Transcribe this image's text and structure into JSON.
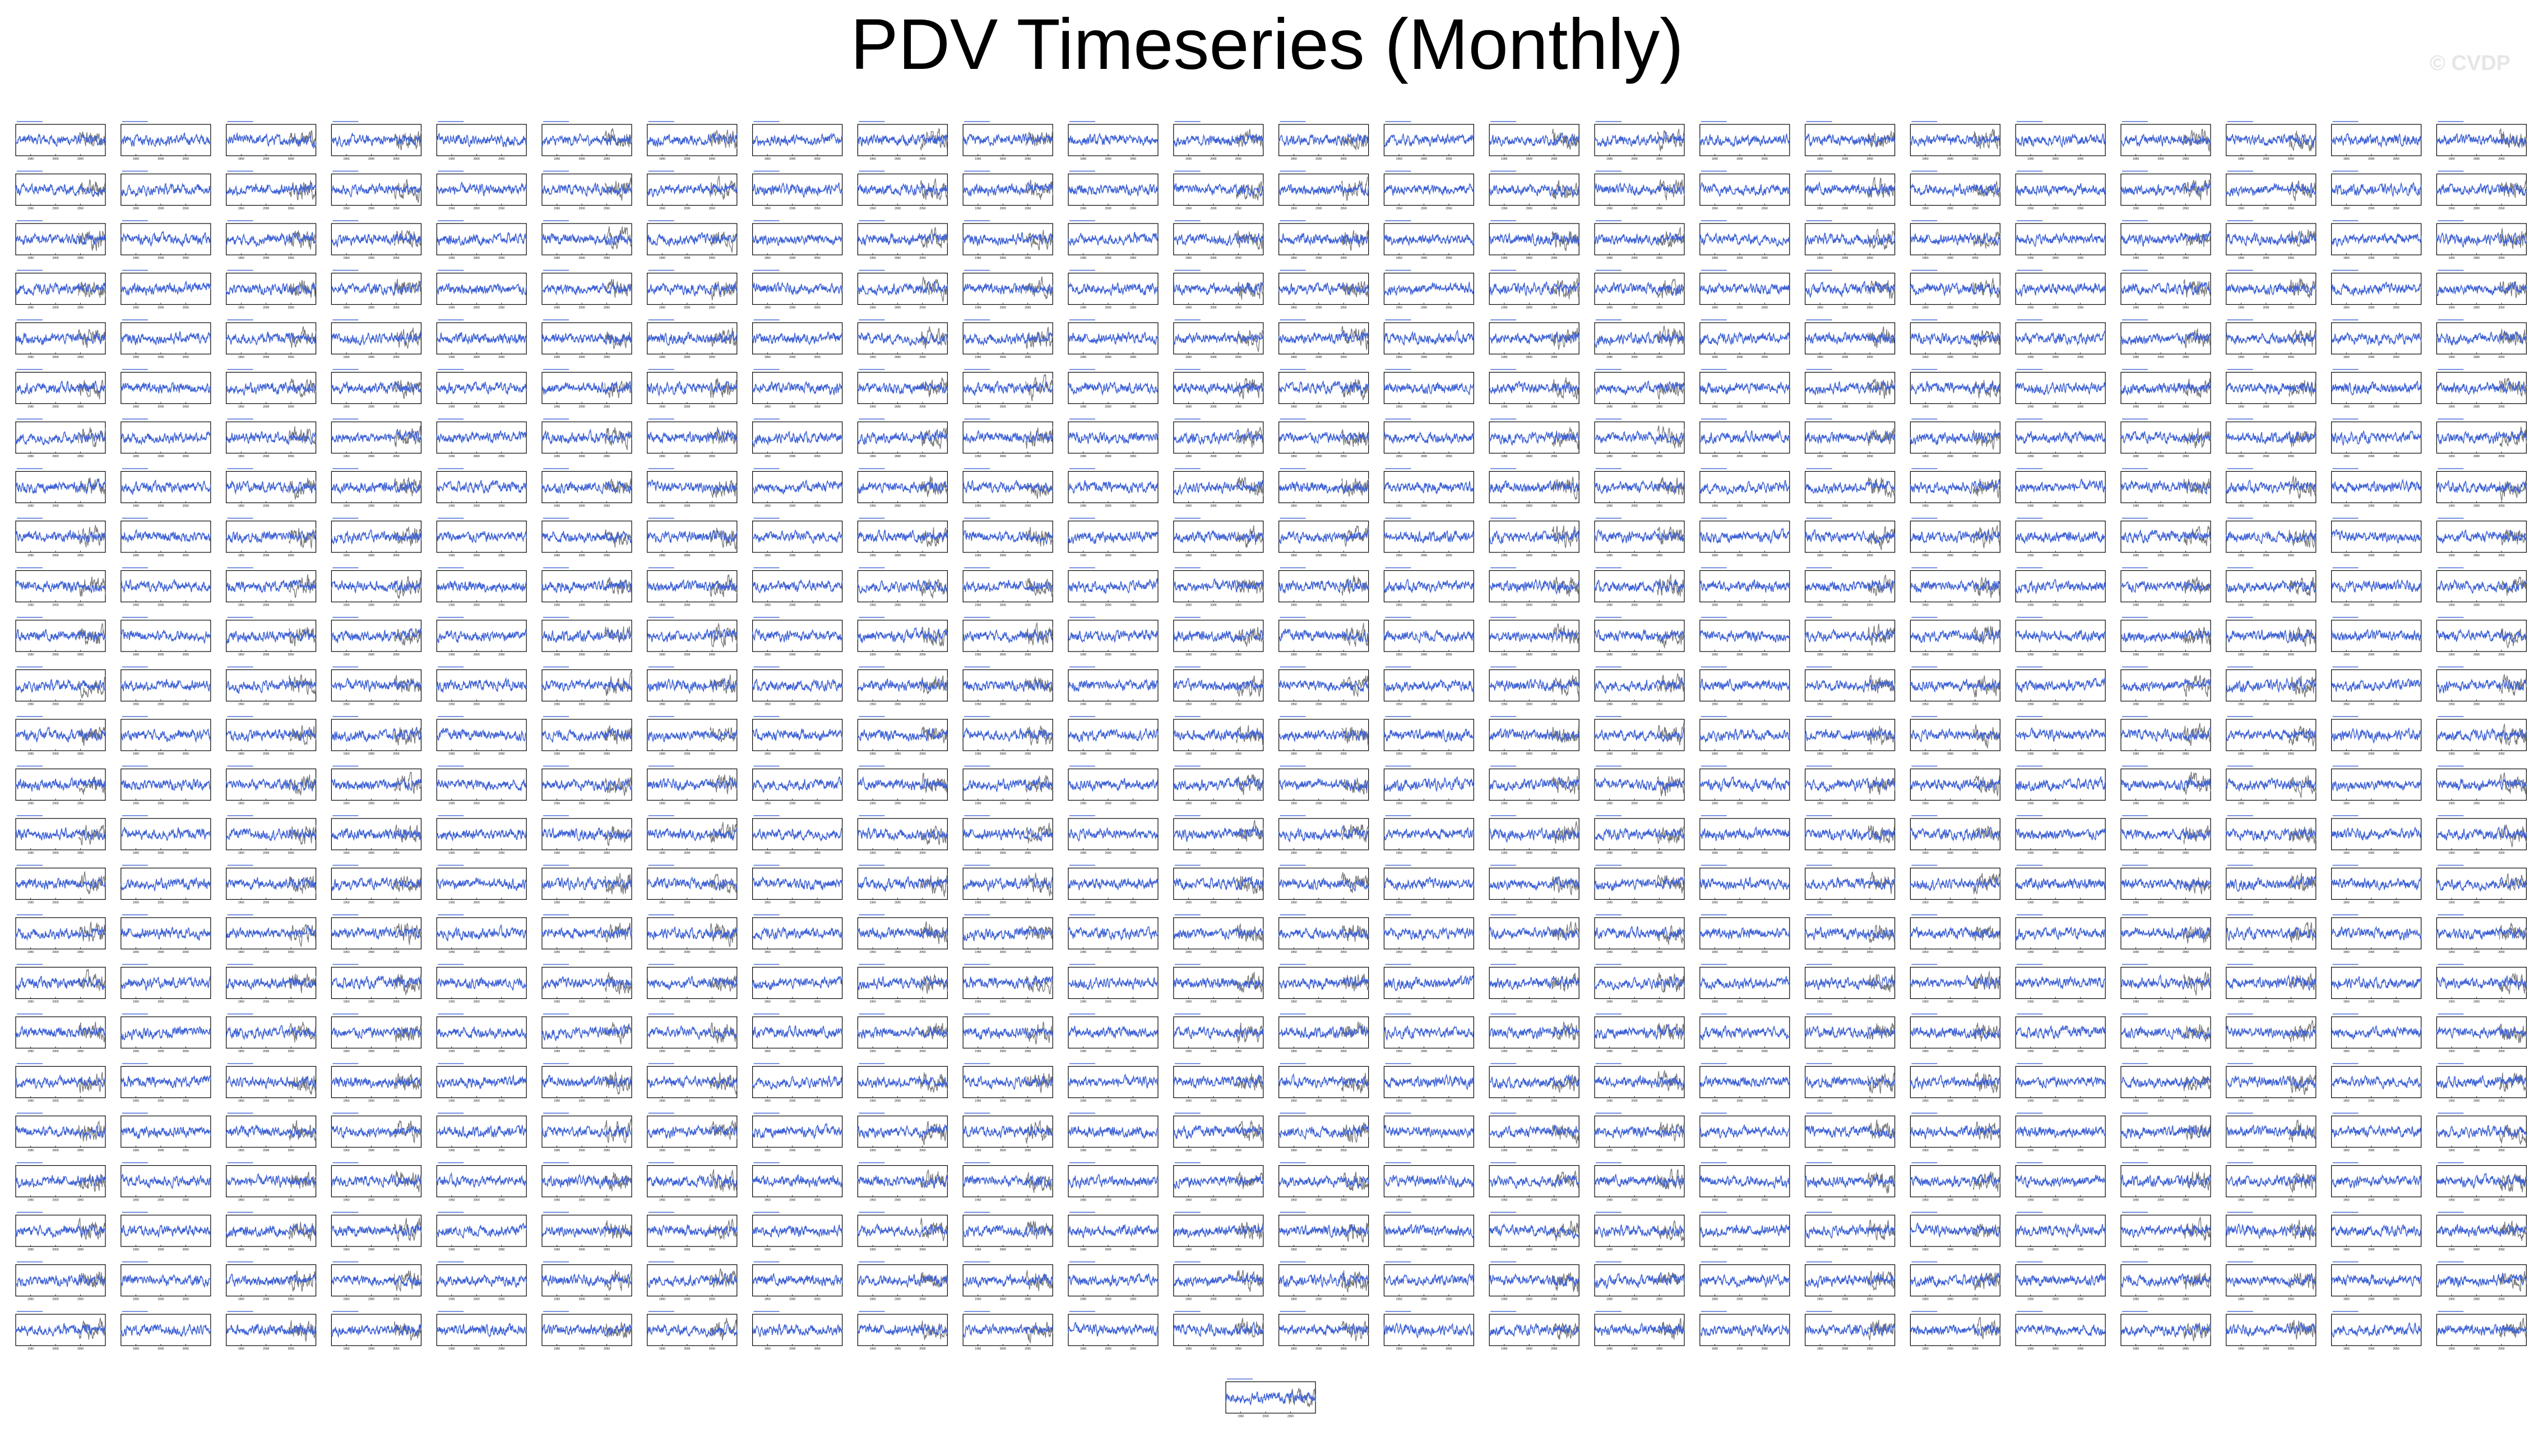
{
  "title": "PDV Timeseries (Monthly)",
  "watermark": "© CVDP",
  "chart_data": {
    "type": "line",
    "layout": "small multiples",
    "grid_rows": 25,
    "grid_cols": 24,
    "extra_bottom_panels": 1,
    "panel_count": 601,
    "series": [
      {
        "name": "",
        "color": "#3e62d6",
        "role": "model ensemble member"
      },
      {
        "name": "",
        "color": "#7a7a7a",
        "role": "observations (right portion of panels)"
      }
    ],
    "ylim": [
      -3,
      3
    ],
    "xlim": [
      1920,
      2100
    ],
    "xticks": [
      1950,
      2000,
      2050
    ],
    "grid": false,
    "legend": "none",
    "note": "Panel titles and tick labels are too small to read at this resolution"
  }
}
